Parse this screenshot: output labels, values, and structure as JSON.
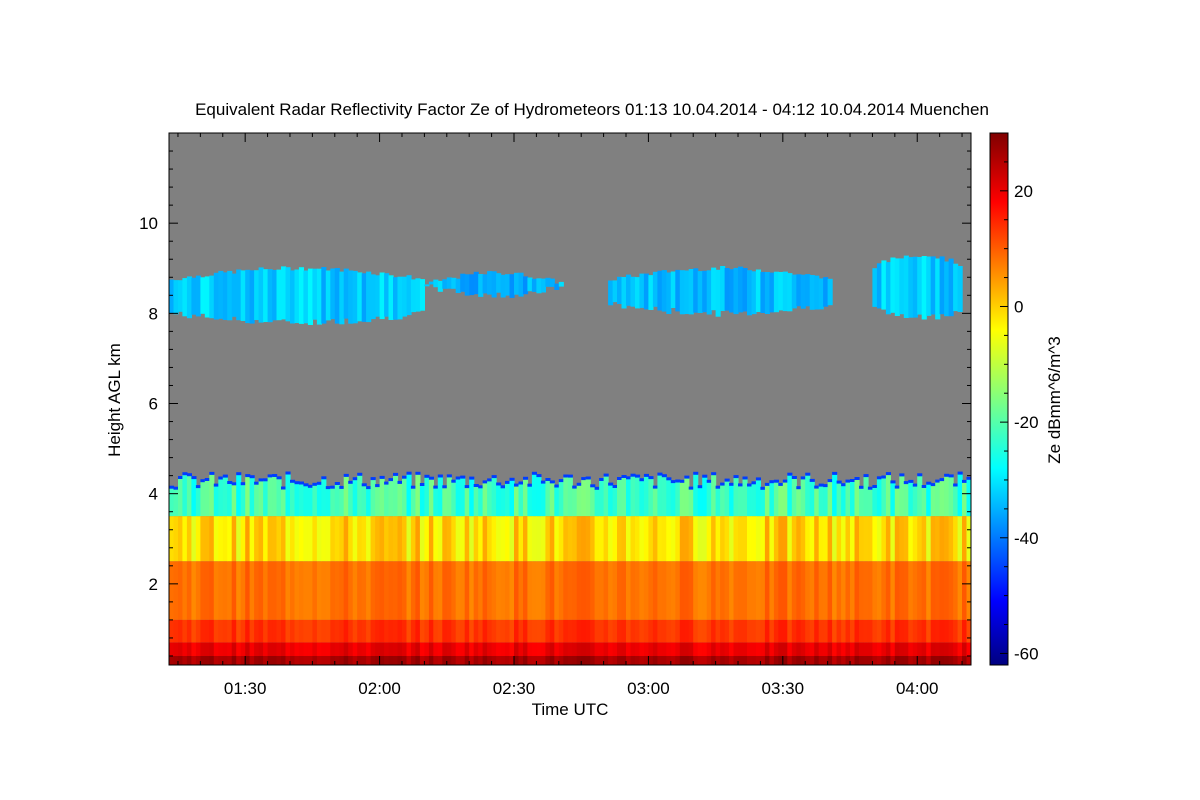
{
  "chart_data": {
    "type": "heatmap",
    "title": "Equivalent Radar Reflectivity Factor Ze of Hydrometeors   01:13 10.04.2014 - 04:12 10.04.2014 Muenchen",
    "xlabel": "Time UTC",
    "ylabel": "Height AGL km",
    "x_range": [
      "01:13",
      "04:12"
    ],
    "x_ticks": [
      "01:30",
      "02:00",
      "02:30",
      "03:00",
      "03:30",
      "04:00"
    ],
    "y_range": [
      0.2,
      12
    ],
    "y_ticks": [
      "2",
      "4",
      "6",
      "8",
      "10"
    ],
    "colorbar": {
      "label": "Ze dBmm^6/m^3",
      "range": [
        -62,
        30
      ],
      "ticks": [
        "20",
        "0",
        "-20",
        "-40",
        "-60"
      ]
    },
    "background_color": "#808080",
    "features": [
      {
        "kind": "cirrus",
        "t_start": "01:13",
        "t_end": "02:10",
        "base_km": 7.8,
        "top_km": 9.0,
        "ze_dbz": -32
      },
      {
        "kind": "cirrus",
        "t_start": "02:10",
        "t_end": "02:41",
        "base_km": 8.4,
        "top_km": 8.9,
        "ze_dbz": -34
      },
      {
        "kind": "cirrus",
        "t_start": "02:51",
        "t_end": "03:41",
        "base_km": 8.0,
        "top_km": 9.0,
        "ze_dbz": -33
      },
      {
        "kind": "cirrus",
        "t_start": "03:50",
        "t_end": "04:10",
        "base_km": 7.9,
        "top_km": 9.3,
        "ze_dbz": -32
      },
      {
        "kind": "precipitation",
        "t_start": "01:13",
        "t_end": "04:12",
        "base_km": 0.2,
        "top_km": 4.4,
        "ze_dbz_near_ground": 25,
        "ze_dbz_mid": 5,
        "ze_dbz_top": -35
      }
    ]
  }
}
